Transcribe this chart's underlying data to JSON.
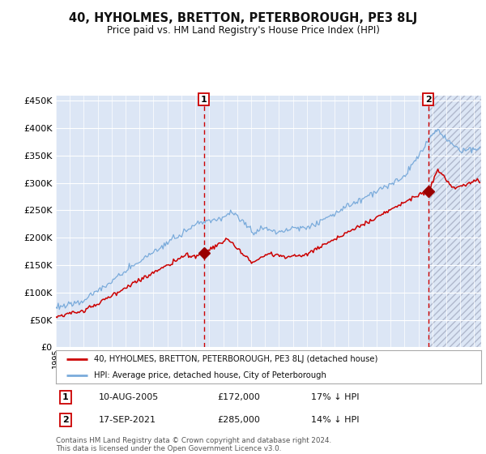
{
  "title": "40, HYHOLMES, BRETTON, PETERBOROUGH, PE3 8LJ",
  "subtitle": "Price paid vs. HM Land Registry's House Price Index (HPI)",
  "ylim": [
    0,
    460000
  ],
  "yticks": [
    0,
    50000,
    100000,
    150000,
    200000,
    250000,
    300000,
    350000,
    400000,
    450000
  ],
  "xlim_start": 1995,
  "xlim_end": 2025.5,
  "background_color": "#ffffff",
  "plot_bg_color": "#dce6f5",
  "grid_color": "#ffffff",
  "title_fontsize": 10.5,
  "subtitle_fontsize": 8.5,
  "legend_label_red": "40, HYHOLMES, BRETTON, PETERBOROUGH, PE3 8LJ (detached house)",
  "legend_label_blue": "HPI: Average price, detached house, City of Peterborough",
  "sale1_date": "10-AUG-2005",
  "sale1_price": "£172,000",
  "sale1_pct": "17% ↓ HPI",
  "sale1_year": 2005.62,
  "sale1_value": 172000,
  "sale2_date": "17-SEP-2021",
  "sale2_price": "£285,000",
  "sale2_pct": "14% ↓ HPI",
  "sale2_year": 2021.71,
  "sale2_value": 285000,
  "footer": "Contains HM Land Registry data © Crown copyright and database right 2024.\nThis data is licensed under the Open Government Licence v3.0.",
  "red_color": "#cc0000",
  "blue_color": "#7aabdb",
  "marker_color": "#990000",
  "hatch_color": "#b0b8cc"
}
